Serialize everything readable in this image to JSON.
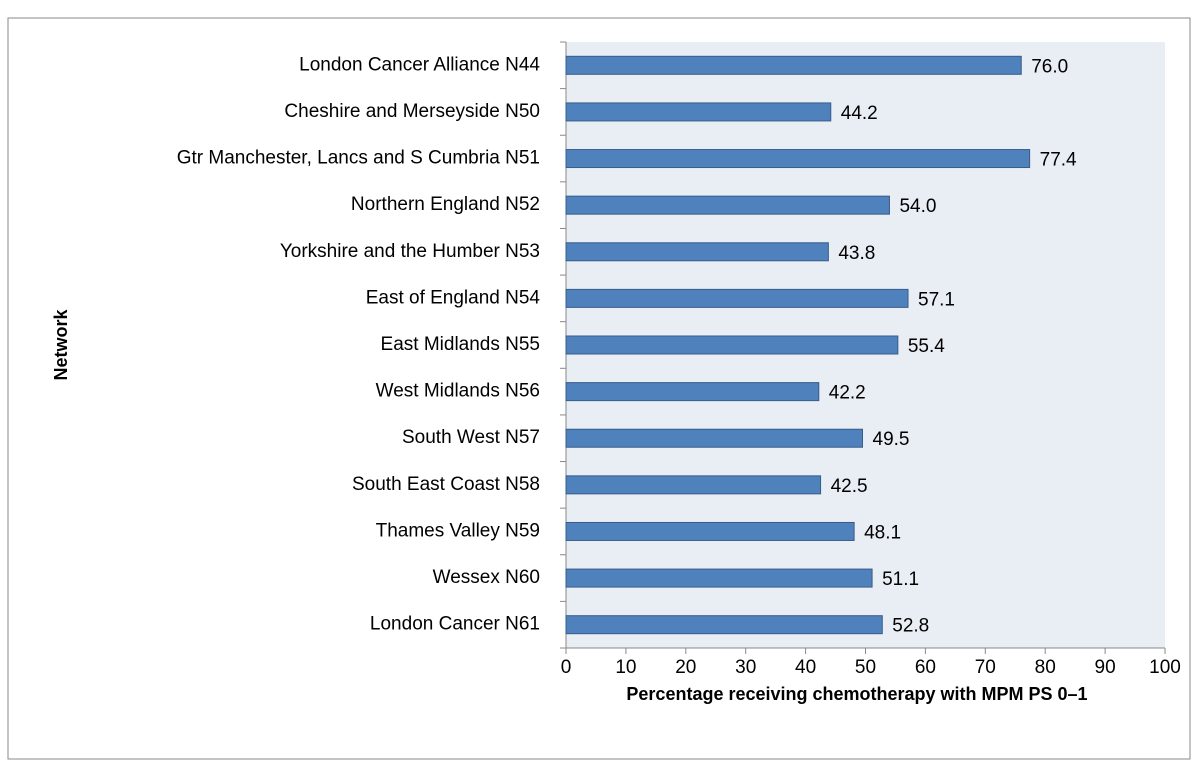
{
  "chart_data": {
    "type": "barh",
    "x_label": "Percentage receiving chemotherapy with MPM PS 0–1",
    "y_label": "Network",
    "categories": [
      "London Cancer Alliance N44",
      "Cheshire and Merseyside N50",
      "Gtr Manchester, Lancs and S Cumbria N51",
      "Northern England N52",
      "Yorkshire and the Humber N53",
      "East of England N54",
      "East Midlands N55",
      "West Midlands N56",
      "South West N57",
      "South East Coast N58",
      "Thames Valley N59",
      "Wessex N60",
      "London Cancer N61"
    ],
    "values": [
      76.0,
      44.2,
      77.4,
      54.0,
      43.8,
      57.1,
      55.4,
      42.2,
      49.5,
      42.5,
      48.1,
      51.1,
      52.8
    ],
    "value_labels": [
      "76.0",
      "44.2",
      "77.4",
      "54.0",
      "43.8",
      "57.1",
      "55.4",
      "42.2",
      "49.5",
      "42.5",
      "48.1",
      "51.1",
      "52.8"
    ],
    "color": "#4f81bd",
    "xlim": [
      0,
      100
    ],
    "xticks": [
      0,
      10,
      20,
      30,
      40,
      50,
      60,
      70,
      80,
      90,
      100
    ]
  }
}
